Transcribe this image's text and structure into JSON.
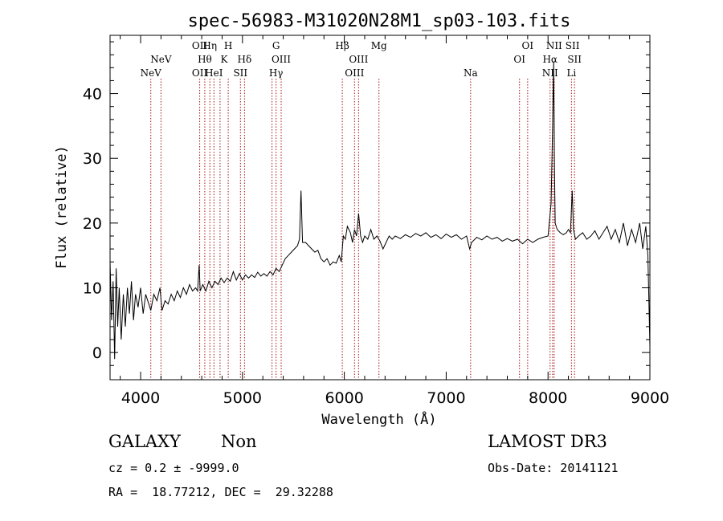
{
  "chart_data": {
    "type": "line",
    "title": "spec-56983-M31020N28M1_sp03-103.fits",
    "xlabel": "Wavelength (Å)",
    "ylabel": "Flux (relative)",
    "xlim": [
      3700,
      9000
    ],
    "ylim": [
      -4.2,
      49
    ],
    "x_ticks": [
      4000,
      5000,
      6000,
      7000,
      8000,
      9000
    ],
    "y_ticks": [
      0,
      10,
      20,
      30,
      40
    ],
    "series": [
      {
        "name": "spectrum",
        "points": [
          [
            3700,
            14
          ],
          [
            3715,
            5
          ],
          [
            3730,
            11
          ],
          [
            3745,
            -1
          ],
          [
            3760,
            13
          ],
          [
            3775,
            4
          ],
          [
            3790,
            10
          ],
          [
            3810,
            2
          ],
          [
            3830,
            9
          ],
          [
            3850,
            4
          ],
          [
            3870,
            10
          ],
          [
            3890,
            6
          ],
          [
            3910,
            11
          ],
          [
            3930,
            5
          ],
          [
            3950,
            9
          ],
          [
            3975,
            7
          ],
          [
            4000,
            10
          ],
          [
            4025,
            6
          ],
          [
            4050,
            9
          ],
          [
            4080,
            7.5
          ],
          [
            4100,
            6.5
          ],
          [
            4130,
            9
          ],
          [
            4160,
            8
          ],
          [
            4190,
            10
          ],
          [
            4210,
            6.5
          ],
          [
            4240,
            8
          ],
          [
            4270,
            7.5
          ],
          [
            4300,
            9
          ],
          [
            4330,
            8
          ],
          [
            4360,
            9.5
          ],
          [
            4390,
            8.5
          ],
          [
            4420,
            10
          ],
          [
            4450,
            9
          ],
          [
            4480,
            10.5
          ],
          [
            4510,
            9.5
          ],
          [
            4540,
            10
          ],
          [
            4560,
            9.5
          ],
          [
            4575,
            13.5
          ],
          [
            4585,
            9.5
          ],
          [
            4610,
            10.5
          ],
          [
            4640,
            9.5
          ],
          [
            4670,
            11
          ],
          [
            4700,
            10
          ],
          [
            4730,
            11
          ],
          [
            4760,
            10.5
          ],
          [
            4790,
            11.5
          ],
          [
            4820,
            10.8
          ],
          [
            4850,
            11.5
          ],
          [
            4880,
            11
          ],
          [
            4910,
            12.5
          ],
          [
            4940,
            11.2
          ],
          [
            4970,
            12.2
          ],
          [
            5000,
            11.2
          ],
          [
            5030,
            12
          ],
          [
            5060,
            11.5
          ],
          [
            5090,
            12
          ],
          [
            5120,
            11.6
          ],
          [
            5150,
            12.4
          ],
          [
            5180,
            11.8
          ],
          [
            5210,
            12.2
          ],
          [
            5240,
            11.8
          ],
          [
            5270,
            12.5
          ],
          [
            5300,
            12
          ],
          [
            5330,
            13
          ],
          [
            5360,
            12.5
          ],
          [
            5390,
            13.5
          ],
          [
            5420,
            14.5
          ],
          [
            5450,
            15
          ],
          [
            5480,
            15.5
          ],
          [
            5510,
            16
          ],
          [
            5540,
            16.5
          ],
          [
            5560,
            17.5
          ],
          [
            5575,
            25
          ],
          [
            5590,
            17
          ],
          [
            5620,
            17
          ],
          [
            5650,
            16.5
          ],
          [
            5680,
            16
          ],
          [
            5710,
            15.5
          ],
          [
            5740,
            15.8
          ],
          [
            5770,
            14.5
          ],
          [
            5800,
            14
          ],
          [
            5830,
            14.5
          ],
          [
            5860,
            13.5
          ],
          [
            5890,
            14
          ],
          [
            5920,
            13.8
          ],
          [
            5950,
            15
          ],
          [
            5970,
            14
          ],
          [
            5990,
            18
          ],
          [
            6010,
            17.5
          ],
          [
            6030,
            19.5
          ],
          [
            6060,
            18.5
          ],
          [
            6080,
            17
          ],
          [
            6100,
            19
          ],
          [
            6120,
            18
          ],
          [
            6140,
            21.5
          ],
          [
            6160,
            18
          ],
          [
            6180,
            17
          ],
          [
            6200,
            18
          ],
          [
            6230,
            17.5
          ],
          [
            6260,
            19
          ],
          [
            6290,
            17.5
          ],
          [
            6320,
            18
          ],
          [
            6350,
            17.2
          ],
          [
            6380,
            16
          ],
          [
            6410,
            17
          ],
          [
            6440,
            18
          ],
          [
            6470,
            17.5
          ],
          [
            6500,
            18
          ],
          [
            6550,
            17.6
          ],
          [
            6600,
            18.2
          ],
          [
            6650,
            17.8
          ],
          [
            6700,
            18.4
          ],
          [
            6750,
            18
          ],
          [
            6800,
            18.5
          ],
          [
            6850,
            17.8
          ],
          [
            6900,
            18.2
          ],
          [
            6950,
            17.6
          ],
          [
            7000,
            18.3
          ],
          [
            7050,
            17.8
          ],
          [
            7100,
            18.2
          ],
          [
            7150,
            17.5
          ],
          [
            7200,
            18
          ],
          [
            7230,
            16
          ],
          [
            7250,
            17
          ],
          [
            7300,
            17.8
          ],
          [
            7350,
            17.4
          ],
          [
            7400,
            18
          ],
          [
            7450,
            17.5
          ],
          [
            7500,
            17.8
          ],
          [
            7550,
            17.2
          ],
          [
            7600,
            17.6
          ],
          [
            7650,
            17.2
          ],
          [
            7700,
            17.5
          ],
          [
            7750,
            16.8
          ],
          [
            7800,
            17.5
          ],
          [
            7850,
            17
          ],
          [
            7900,
            17.5
          ],
          [
            7950,
            17.8
          ],
          [
            8000,
            18
          ],
          [
            8030,
            23
          ],
          [
            8045,
            35
          ],
          [
            8055,
            45
          ],
          [
            8062,
            30
          ],
          [
            8070,
            20
          ],
          [
            8090,
            19
          ],
          [
            8120,
            18.5
          ],
          [
            8150,
            18.2
          ],
          [
            8180,
            18.5
          ],
          [
            8200,
            19
          ],
          [
            8220,
            18.5
          ],
          [
            8237,
            25
          ],
          [
            8250,
            19
          ],
          [
            8270,
            17.5
          ],
          [
            8300,
            18
          ],
          [
            8340,
            18.5
          ],
          [
            8380,
            17.5
          ],
          [
            8420,
            18
          ],
          [
            8460,
            18.8
          ],
          [
            8500,
            17.5
          ],
          [
            8540,
            18.5
          ],
          [
            8580,
            19.5
          ],
          [
            8620,
            17.5
          ],
          [
            8660,
            19
          ],
          [
            8700,
            17
          ],
          [
            8740,
            20
          ],
          [
            8780,
            16.5
          ],
          [
            8820,
            19
          ],
          [
            8860,
            17
          ],
          [
            8900,
            20
          ],
          [
            8930,
            16
          ],
          [
            8960,
            19.5
          ],
          [
            8980,
            15
          ],
          [
            9000,
            1
          ]
        ]
      }
    ],
    "line_marks": [
      {
        "label": "NeV",
        "wl": 4100,
        "row": 3
      },
      {
        "label": "NeV",
        "wl": 4200,
        "row": 2
      },
      {
        "label": "OII",
        "wl": 4580,
        "row": 1
      },
      {
        "label": "Hη",
        "wl": 4680,
        "row": 1
      },
      {
        "label": "H",
        "wl": 4860,
        "row": 1
      },
      {
        "label": "G",
        "wl": 5330,
        "row": 1
      },
      {
        "label": "Hβ",
        "wl": 5980,
        "row": 1
      },
      {
        "label": "Mg",
        "wl": 6340,
        "row": 1
      },
      {
        "label": "OI",
        "wl": 7800,
        "row": 1
      },
      {
        "label": "NII",
        "wl": 8060,
        "row": 1
      },
      {
        "label": "SII",
        "wl": 8240,
        "row": 1
      },
      {
        "label": "Hθ",
        "wl": 4630,
        "row": 2
      },
      {
        "label": "K",
        "wl": 4820,
        "row": 2
      },
      {
        "label": "Hδ",
        "wl": 5020,
        "row": 2
      },
      {
        "label": "OIII",
        "wl": 5380,
        "row": 2
      },
      {
        "label": "OIII",
        "wl": 6140,
        "row": 2
      },
      {
        "label": "OI",
        "wl": 7720,
        "row": 2
      },
      {
        "label": "Hα",
        "wl": 8020,
        "row": 2
      },
      {
        "label": "SII",
        "wl": 8260,
        "row": 2
      },
      {
        "label": "OII",
        "wl": 4580,
        "row": 3
      },
      {
        "label": "HeI",
        "wl": 4720,
        "row": 3
      },
      {
        "label": "SII",
        "wl": 4980,
        "row": 3
      },
      {
        "label": "Hγ",
        "wl": 5330,
        "row": 3
      },
      {
        "label": "OIII",
        "wl": 6100,
        "row": 3
      },
      {
        "label": "Na",
        "wl": 7240,
        "row": 3
      },
      {
        "label": "NII",
        "wl": 8020,
        "row": 3
      },
      {
        "label": "Li",
        "wl": 8230,
        "row": 3
      }
    ],
    "marker_lines": [
      4100,
      4200,
      4580,
      4630,
      4680,
      4720,
      4780,
      4860,
      4980,
      5020,
      5290,
      5330,
      5380,
      5980,
      6100,
      6140,
      6340,
      7240,
      7720,
      7800,
      8020,
      8045,
      8060,
      8230,
      8260
    ],
    "grid": false,
    "colors": {
      "spectrum": "#000000",
      "marker": "#aa1111",
      "axes": "#000000"
    }
  },
  "info": {
    "object_class": "GALAXY",
    "subclass": "Non",
    "survey": "LAMOST DR3",
    "cz": "cz = 0.2 ± -9999.0",
    "obs_date": "Obs-Date: 20141121",
    "coords": "RA =  18.77212, DEC =  29.32288"
  }
}
